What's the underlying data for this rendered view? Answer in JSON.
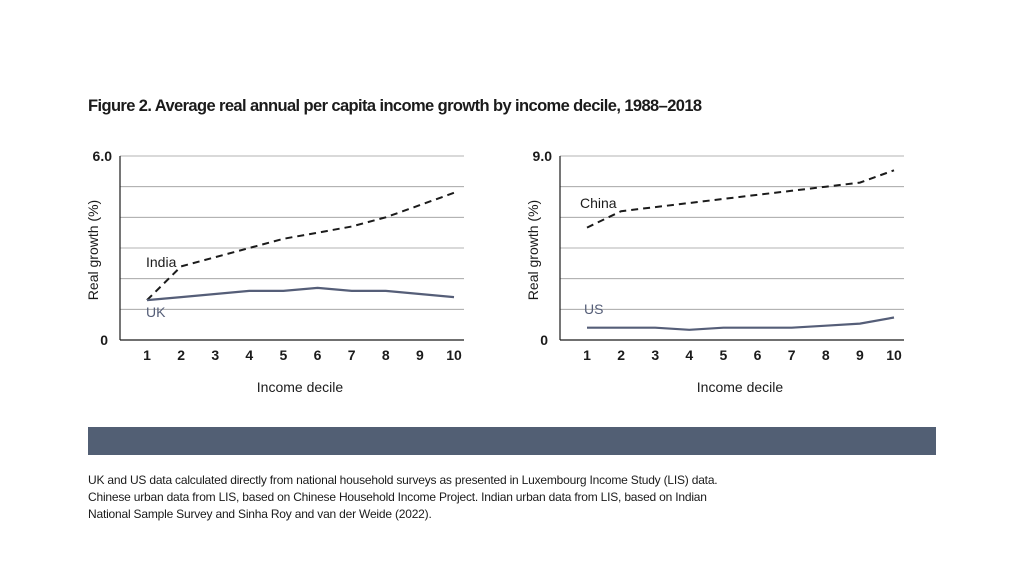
{
  "figure_title": "Figure 2. Average real annual per capita income growth by income decile, 1988–2018",
  "source_note": "UK and US data calculated directly from national household surveys as presented in Luxembourg Income Study (LIS) data. Chinese urban data from LIS, based on Chinese Household Income Project. Indian urban data from LIS, based on Indian National Sample Survey and Sinha Roy and van der Weide (2022).",
  "colors": {
    "dark_series": "#1b1b1b",
    "muted_series": "#555e78",
    "grid": "#9a9a9a",
    "band": "#525f74"
  },
  "chart_data": [
    {
      "type": "line",
      "xlabel": "Income decile",
      "ylabel": "Real growth (%)",
      "ylim": [
        0,
        6.0
      ],
      "ytick_labels": [
        "0",
        "6.0"
      ],
      "grid": true,
      "x": [
        1,
        2,
        3,
        4,
        5,
        6,
        7,
        8,
        9,
        10
      ],
      "series": [
        {
          "name": "India",
          "style": "dashed",
          "color": "#1b1b1b",
          "values": [
            1.3,
            2.4,
            2.7,
            3.0,
            3.3,
            3.5,
            3.7,
            4.0,
            4.4,
            4.8
          ]
        },
        {
          "name": "UK",
          "style": "solid",
          "color": "#555e78",
          "values": [
            1.3,
            1.4,
            1.5,
            1.6,
            1.6,
            1.7,
            1.6,
            1.6,
            1.5,
            1.4
          ]
        }
      ]
    },
    {
      "type": "line",
      "xlabel": "Income decile",
      "ylabel": "Real growth (%)",
      "ylim": [
        0,
        9.0
      ],
      "ytick_labels": [
        "0",
        "9.0"
      ],
      "grid": true,
      "x": [
        1,
        2,
        3,
        4,
        5,
        6,
        7,
        8,
        9,
        10
      ],
      "series": [
        {
          "name": "China",
          "style": "dashed",
          "color": "#1b1b1b",
          "values": [
            5.5,
            6.3,
            6.5,
            6.7,
            6.9,
            7.1,
            7.3,
            7.5,
            7.7,
            8.3
          ]
        },
        {
          "name": "US",
          "style": "solid",
          "color": "#555e78",
          "values": [
            0.6,
            0.6,
            0.6,
            0.5,
            0.6,
            0.6,
            0.6,
            0.7,
            0.8,
            1.1
          ]
        }
      ]
    }
  ]
}
